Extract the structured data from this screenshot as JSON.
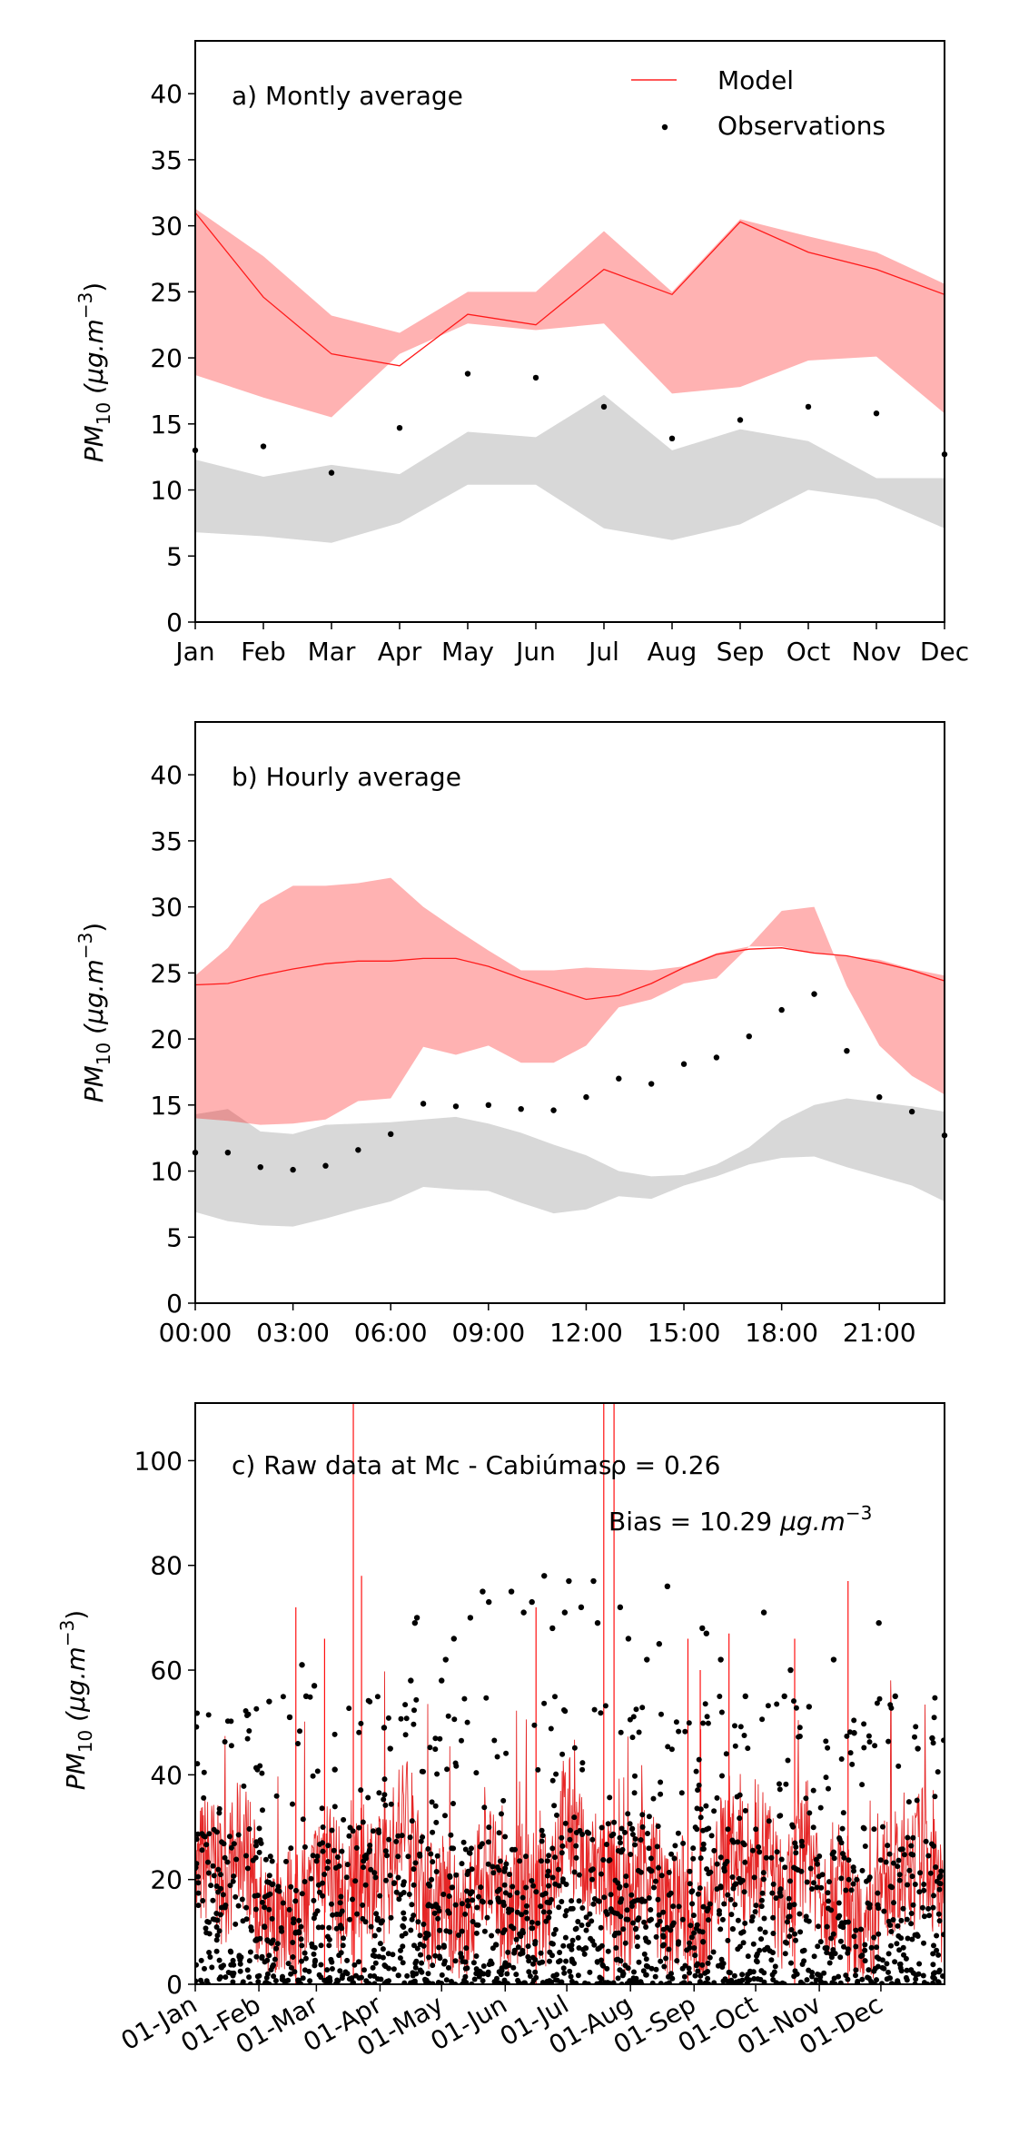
{
  "chart_data": [
    {
      "id": "a",
      "type": "line",
      "annotation": "a) Montly average",
      "ylabel_main": "PM",
      "ylabel_sub": "10",
      "ylabel_unit": " (μg.m",
      "ylabel_exp": "−3",
      "ylabel_close": ")",
      "ylim": [
        0,
        44
      ],
      "xlim": [
        0,
        11
      ],
      "yticks": [
        0,
        5,
        10,
        15,
        20,
        25,
        30,
        35,
        40
      ],
      "xticks": [
        {
          "v": 0,
          "label": "Jan"
        },
        {
          "v": 1,
          "label": "Feb"
        },
        {
          "v": 2,
          "label": "Mar"
        },
        {
          "v": 3,
          "label": "Apr"
        },
        {
          "v": 4,
          "label": "May"
        },
        {
          "v": 5,
          "label": "Jun"
        },
        {
          "v": 6,
          "label": "Jul"
        },
        {
          "v": 7,
          "label": "Aug"
        },
        {
          "v": 8,
          "label": "Sep"
        },
        {
          "v": 9,
          "label": "Oct"
        },
        {
          "v": 10,
          "label": "Nov"
        },
        {
          "v": 11,
          "label": "Dec"
        }
      ],
      "legend": {
        "position": "top-right",
        "model_label": "Model",
        "obs_label": "Observations"
      },
      "x": [
        0,
        1,
        2,
        3,
        4,
        5,
        6,
        7,
        8,
        9,
        10,
        11
      ],
      "model_line": [
        31.0,
        24.6,
        20.3,
        19.4,
        23.3,
        22.5,
        26.7,
        24.8,
        30.3,
        28.0,
        26.7,
        24.8
      ],
      "model_band_upper": [
        31.3,
        27.7,
        23.2,
        21.9,
        25.0,
        25.0,
        29.6,
        25.0,
        30.5,
        29.2,
        28.0,
        25.6
      ],
      "model_band_lower": [
        18.7,
        17.0,
        15.5,
        20.3,
        22.6,
        22.1,
        22.6,
        17.3,
        17.8,
        19.8,
        20.1,
        15.8
      ],
      "obs_band_upper": [
        12.3,
        11.0,
        11.9,
        11.2,
        14.4,
        14.0,
        17.2,
        13.0,
        14.6,
        13.7,
        10.9,
        10.9
      ],
      "obs_band_lower": [
        6.8,
        6.5,
        6.0,
        7.5,
        10.4,
        10.4,
        7.1,
        6.2,
        7.4,
        10.0,
        9.3,
        7.1
      ],
      "observations": [
        13.0,
        13.3,
        11.3,
        14.7,
        18.8,
        18.5,
        16.3,
        13.9,
        15.3,
        16.3,
        15.8,
        12.7
      ]
    },
    {
      "id": "b",
      "type": "line",
      "annotation": "b) Hourly average",
      "ylabel_main": "PM",
      "ylabel_sub": "10",
      "ylabel_unit": " (μg.m",
      "ylabel_exp": "−3",
      "ylabel_close": ")",
      "ylim": [
        0,
        44
      ],
      "xlim": [
        0,
        23
      ],
      "yticks": [
        0,
        5,
        10,
        15,
        20,
        25,
        30,
        35,
        40
      ],
      "xticks": [
        {
          "v": 0,
          "label": "00:00"
        },
        {
          "v": 3,
          "label": "03:00"
        },
        {
          "v": 6,
          "label": "06:00"
        },
        {
          "v": 9,
          "label": "09:00"
        },
        {
          "v": 12,
          "label": "12:00"
        },
        {
          "v": 15,
          "label": "15:00"
        },
        {
          "v": 18,
          "label": "18:00"
        },
        {
          "v": 21,
          "label": "21:00"
        }
      ],
      "x": [
        0,
        1,
        2,
        3,
        4,
        5,
        6,
        7,
        8,
        9,
        10,
        11,
        12,
        13,
        14,
        15,
        16,
        17,
        18,
        19,
        20,
        21,
        22,
        23
      ],
      "model_line": [
        24.1,
        24.2,
        24.8,
        25.3,
        25.7,
        25.9,
        25.9,
        26.1,
        26.1,
        25.5,
        24.6,
        23.8,
        23.0,
        23.3,
        24.2,
        25.4,
        26.4,
        26.8,
        26.9,
        26.5,
        26.3,
        25.8,
        25.2,
        24.4
      ],
      "model_band_upper": [
        24.8,
        26.9,
        30.2,
        31.6,
        31.6,
        31.8,
        32.2,
        30.0,
        28.3,
        26.7,
        25.2,
        25.2,
        25.4,
        25.3,
        25.2,
        25.5,
        26.5,
        27.0,
        27.0,
        26.5,
        26.3,
        26.0,
        25.3,
        24.8
      ],
      "model_band_lower": [
        14.0,
        13.8,
        13.5,
        13.6,
        13.9,
        15.3,
        15.5,
        19.4,
        18.8,
        19.5,
        18.2,
        18.2,
        19.5,
        22.4,
        23.0,
        24.2,
        24.6,
        27.0,
        29.7,
        30.0,
        24.0,
        19.5,
        17.2,
        15.8
      ],
      "obs_band_upper": [
        14.3,
        14.7,
        13.0,
        12.8,
        13.5,
        13.6,
        13.7,
        13.9,
        14.1,
        13.6,
        12.9,
        12.0,
        11.2,
        10.0,
        9.6,
        9.7,
        10.5,
        11.8,
        13.8,
        15.0,
        15.5,
        15.2,
        14.9,
        14.5
      ],
      "obs_band_lower": [
        6.9,
        6.2,
        5.9,
        5.8,
        6.4,
        7.1,
        7.7,
        8.8,
        8.6,
        8.5,
        7.6,
        6.8,
        7.1,
        8.1,
        7.9,
        8.9,
        9.6,
        10.5,
        11.0,
        11.1,
        10.3,
        9.6,
        8.9,
        7.7
      ],
      "observations": [
        11.4,
        11.4,
        10.3,
        10.1,
        10.4,
        11.6,
        12.8,
        15.1,
        14.9,
        15.0,
        14.7,
        14.6,
        15.6,
        17.0,
        16.6,
        18.1,
        18.6,
        20.2,
        22.2,
        23.4,
        19.1,
        15.6,
        14.5,
        12.7
      ]
    },
    {
      "id": "c",
      "type": "scatter",
      "annotation": "c) Raw data at Mc - Cabiúmas",
      "rho_label": "ρ = 0.26",
      "bias_label_prefix": "Bias = 10.29 ",
      "bias_label_unit": "μg.m",
      "bias_label_exp": "−3",
      "ylabel_main": "PM",
      "ylabel_sub": "10",
      "ylabel_unit": " (μg.m",
      "ylabel_exp": "−3",
      "ylabel_close": ")",
      "ylim": [
        0,
        111
      ],
      "xlim": [
        0,
        365
      ],
      "yticks": [
        0,
        20,
        40,
        60,
        80,
        100
      ],
      "xticks": [
        {
          "v": 0,
          "label": "01-Jan"
        },
        {
          "v": 31,
          "label": "01-Feb"
        },
        {
          "v": 59,
          "label": "01-Mar"
        },
        {
          "v": 90,
          "label": "01-Apr"
        },
        {
          "v": 120,
          "label": "01-May"
        },
        {
          "v": 151,
          "label": "01-Jun"
        },
        {
          "v": 181,
          "label": "01-Jul"
        },
        {
          "v": 212,
          "label": "01-Aug"
        },
        {
          "v": 243,
          "label": "01-Sep"
        },
        {
          "v": 273,
          "label": "01-Oct"
        },
        {
          "v": 304,
          "label": "01-Nov"
        },
        {
          "v": 334,
          "label": "01-Dec"
        }
      ],
      "model_spikes": [
        {
          "x": 77,
          "y": 111
        },
        {
          "x": 199,
          "y": 111
        },
        {
          "x": 204,
          "y": 111
        },
        {
          "x": 49,
          "y": 72
        },
        {
          "x": 63,
          "y": 66
        },
        {
          "x": 81,
          "y": 78
        },
        {
          "x": 166,
          "y": 72
        },
        {
          "x": 246,
          "y": 60
        },
        {
          "x": 260,
          "y": 67
        },
        {
          "x": 318,
          "y": 77
        },
        {
          "x": 292,
          "y": 66
        },
        {
          "x": 240,
          "y": 66
        }
      ],
      "obs_outliers": [
        {
          "x": 36,
          "y": 54
        },
        {
          "x": 46,
          "y": 51
        },
        {
          "x": 52,
          "y": 61
        },
        {
          "x": 54,
          "y": 55
        },
        {
          "x": 58,
          "y": 57
        },
        {
          "x": 68,
          "y": 41
        },
        {
          "x": 92,
          "y": 49
        },
        {
          "x": 95,
          "y": 45
        },
        {
          "x": 105,
          "y": 58
        },
        {
          "x": 108,
          "y": 70
        },
        {
          "x": 107,
          "y": 69
        },
        {
          "x": 120,
          "y": 58
        },
        {
          "x": 122,
          "y": 62
        },
        {
          "x": 126,
          "y": 66
        },
        {
          "x": 134,
          "y": 70
        },
        {
          "x": 140,
          "y": 75
        },
        {
          "x": 143,
          "y": 73
        },
        {
          "x": 154,
          "y": 75
        },
        {
          "x": 160,
          "y": 71
        },
        {
          "x": 164,
          "y": 73
        },
        {
          "x": 170,
          "y": 78
        },
        {
          "x": 174,
          "y": 68
        },
        {
          "x": 180,
          "y": 71
        },
        {
          "x": 182,
          "y": 77
        },
        {
          "x": 188,
          "y": 72
        },
        {
          "x": 194,
          "y": 77
        },
        {
          "x": 196,
          "y": 69
        },
        {
          "x": 207,
          "y": 72
        },
        {
          "x": 211,
          "y": 66
        },
        {
          "x": 220,
          "y": 62
        },
        {
          "x": 226,
          "y": 65
        },
        {
          "x": 230,
          "y": 76
        },
        {
          "x": 247,
          "y": 68
        },
        {
          "x": 249,
          "y": 67
        },
        {
          "x": 256,
          "y": 62
        },
        {
          "x": 268,
          "y": 55
        },
        {
          "x": 277,
          "y": 71
        },
        {
          "x": 287,
          "y": 55
        },
        {
          "x": 290,
          "y": 60
        },
        {
          "x": 299,
          "y": 53
        },
        {
          "x": 311,
          "y": 62
        },
        {
          "x": 321,
          "y": 48
        },
        {
          "x": 333,
          "y": 69
        },
        {
          "x": 341,
          "y": 55
        },
        {
          "x": 352,
          "y": 45
        },
        {
          "x": 359,
          "y": 47
        }
      ]
    }
  ]
}
